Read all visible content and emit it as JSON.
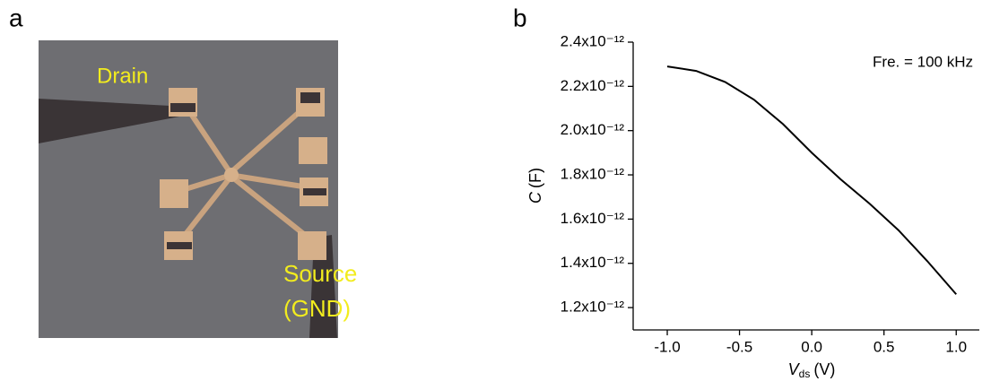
{
  "panel_a": {
    "label": "a",
    "annotations": [
      "Drain",
      "Source",
      "(GND)"
    ]
  },
  "chart_data": {
    "type": "line",
    "panel_label": "b",
    "annotation": "Fre. = 100 kHz",
    "xlabel": {
      "symbol": "V",
      "subscript": "ds",
      "unit": "(V)"
    },
    "ylabel": {
      "symbol": "C",
      "unit": "(F)"
    },
    "x": [
      -1.0,
      -0.8,
      -0.6,
      -0.4,
      -0.2,
      0.0,
      0.2,
      0.4,
      0.6,
      0.8,
      1.0
    ],
    "series": [
      {
        "color": "#000000",
        "values": [
          2.29e-12,
          2.27e-12,
          2.22e-12,
          2.14e-12,
          2.03e-12,
          1.9e-12,
          1.78e-12,
          1.67e-12,
          1.55e-12,
          1.41e-12,
          1.26e-12
        ]
      }
    ],
    "xlim": [
      -1.236,
      1.16
    ],
    "ylim": [
      1.099e-12,
      2.4e-12
    ],
    "xticks": [
      {
        "value": -1,
        "label": "-1.0"
      },
      -0.5,
      {
        "value": 0,
        "label": "0.0"
      },
      0.5,
      {
        "value": 1,
        "label": "1.0"
      }
    ],
    "yticks": [
      {
        "value": 1.2e-12,
        "label": "1.2x10⁻¹²"
      },
      {
        "value": 1.4e-12,
        "label": "1.4x10⁻¹²"
      },
      {
        "value": 1.6e-12,
        "label": "1.6x10⁻¹²"
      },
      {
        "value": 1.8e-12,
        "label": "1.8x10⁻¹²"
      },
      {
        "value": 2e-12,
        "label": "2.0x10⁻¹²"
      },
      {
        "value": 2.2e-12,
        "label": "2.2x10⁻¹²"
      },
      {
        "value": 2.4e-12,
        "label": "2.4x10⁻¹²"
      }
    ]
  }
}
